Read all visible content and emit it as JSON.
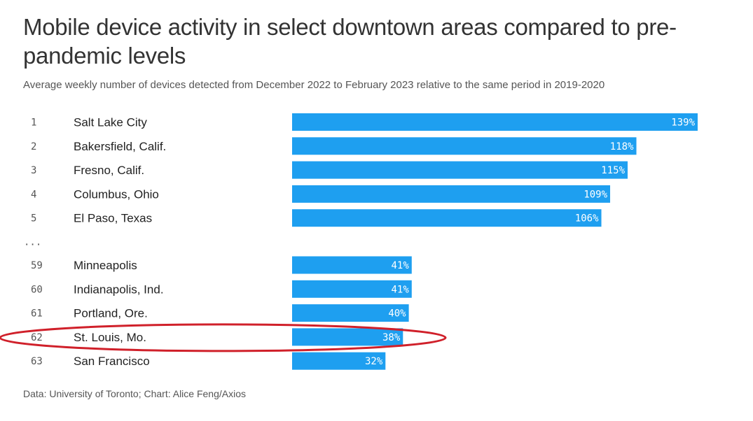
{
  "chart_data": {
    "type": "bar",
    "orientation": "horizontal",
    "title": "Mobile device activity in select downtown areas compared to pre-pandemic levels",
    "subtitle": "Average weekly number of devices detected from December 2022 to February 2023 relative to the same period in 2019-2020",
    "source": "Data: University of Toronto; Chart: Alice Feng/Axios",
    "unit": "%",
    "bar_color": "#1e9ff0",
    "highlight_color": "#d0202a",
    "ellipsis": "...",
    "ellipsis_after_index": 4,
    "highlight_index": 8,
    "rows": [
      {
        "rank": "1",
        "city": "Salt Lake City",
        "value": 139
      },
      {
        "rank": "2",
        "city": "Bakersfield, Calif.",
        "value": 118
      },
      {
        "rank": "3",
        "city": "Fresno, Calif.",
        "value": 115
      },
      {
        "rank": "4",
        "city": "Columbus, Ohio",
        "value": 109
      },
      {
        "rank": "5",
        "city": "El Paso, Texas",
        "value": 106
      },
      {
        "rank": "59",
        "city": "Minneapolis",
        "value": 41
      },
      {
        "rank": "60",
        "city": "Indianapolis, Ind.",
        "value": 41
      },
      {
        "rank": "61",
        "city": "Portland, Ore.",
        "value": 40
      },
      {
        "rank": "62",
        "city": "St. Louis, Mo.",
        "value": 38
      },
      {
        "rank": "63",
        "city": "San Francisco",
        "value": 32
      }
    ]
  }
}
